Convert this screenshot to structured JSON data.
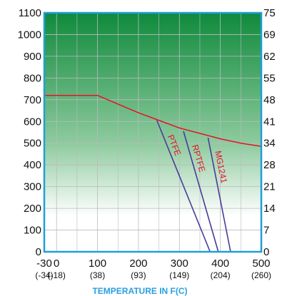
{
  "chart_data": {
    "type": "line",
    "xlabel": "TEMPERATURE IN F(C)",
    "x_ticks": [
      -30,
      0,
      100,
      200,
      300,
      400,
      500
    ],
    "x_ticks_celsius": [
      "(-34)",
      "(-18)",
      "(38)",
      "(93)",
      "(149)",
      "(204)",
      "(260)"
    ],
    "y_ticks_left": [
      0,
      100,
      200,
      300,
      400,
      500,
      600,
      700,
      800,
      900,
      1000,
      1100
    ],
    "y_ticks_right": [
      "0",
      "7",
      "14",
      "21",
      "28",
      "34",
      "41",
      "48",
      "55",
      "62",
      "69",
      "75"
    ],
    "xlim": [
      -30,
      500
    ],
    "ylim": [
      0,
      1100
    ],
    "grid": true,
    "colors": {
      "axis": "#1f9fd8",
      "grid": "#bbbbbb",
      "limit_curve": "#e8102a",
      "material_lines": "#4a3a9a",
      "gradient_top": "#0f8a3c",
      "gradient_bottom": "#ffffff"
    },
    "limit_curve": {
      "x": [
        -30,
        100,
        150,
        200,
        250,
        300,
        350,
        400,
        450,
        500
      ],
      "y": [
        720,
        720,
        680,
        640,
        605,
        570,
        545,
        520,
        500,
        485
      ]
    },
    "series": [
      {
        "name": "PTFE",
        "x": [
          245,
          375
        ],
        "y": [
          605,
          0
        ]
      },
      {
        "name": "RPTFE",
        "x": [
          310,
          395
        ],
        "y": [
          555,
          0
        ]
      },
      {
        "name": "MG1241",
        "x": [
          370,
          425
        ],
        "y": [
          525,
          0
        ]
      }
    ]
  }
}
